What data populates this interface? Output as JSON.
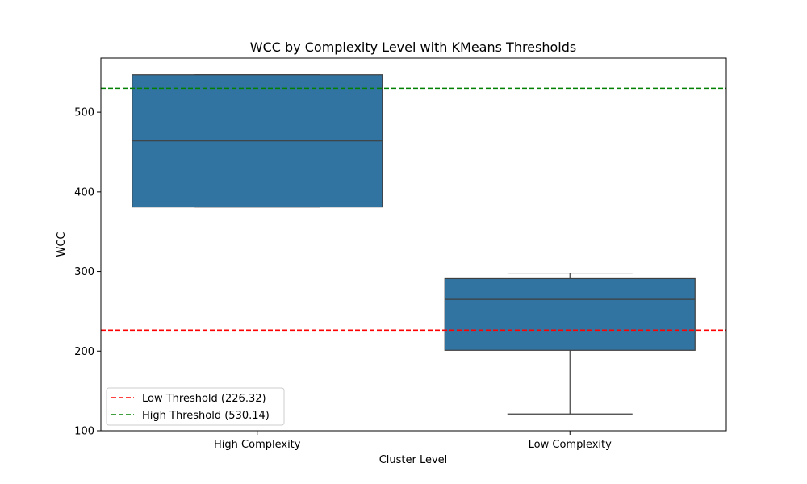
{
  "chart_data": {
    "type": "box",
    "title": "WCC by Complexity Level with KMeans Thresholds",
    "xlabel": "Cluster Level",
    "ylabel": "WCC",
    "ylim": [
      100,
      568
    ],
    "yticks": [
      100,
      200,
      300,
      400,
      500
    ],
    "categories": [
      "High Complexity",
      "Low Complexity"
    ],
    "boxes": [
      {
        "category": "High Complexity",
        "whisker_low": 381,
        "q1": 381,
        "median": 464,
        "q3": 547,
        "whisker_high": 547
      },
      {
        "category": "Low Complexity",
        "whisker_low": 121,
        "q1": 201,
        "median": 265,
        "q3": 291,
        "whisker_high": 298
      }
    ],
    "box_color": "#3274a1",
    "thresholds": [
      {
        "label": "Low Threshold (226.32)",
        "value": 226.32,
        "color": "#ff0000"
      },
      {
        "label": "High Threshold (530.14)",
        "value": 530.14,
        "color": "#008000"
      }
    ],
    "legend_position": "lower-left",
    "grid": false
  }
}
